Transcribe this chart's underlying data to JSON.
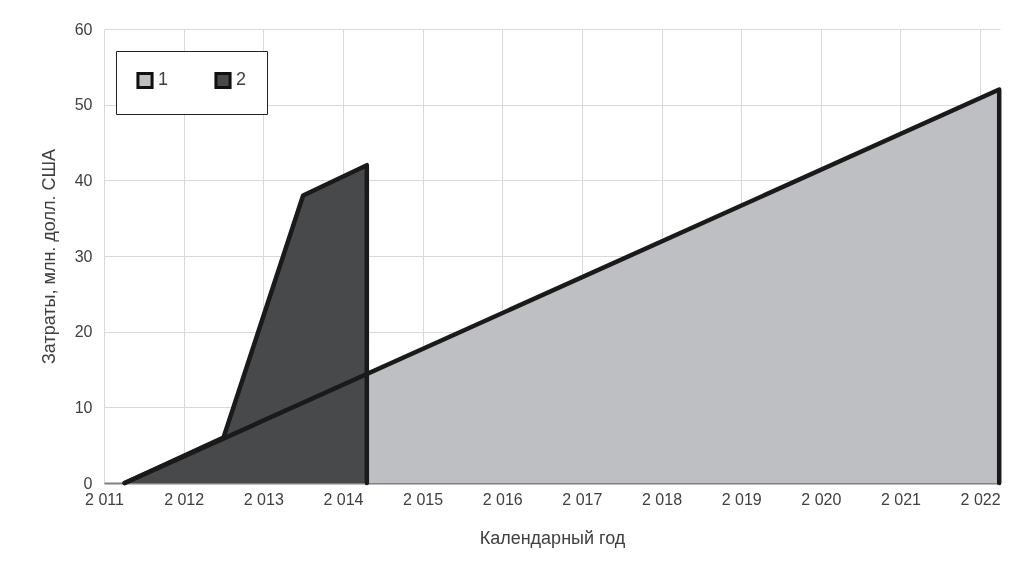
{
  "chart_data": {
    "type": "area",
    "xlabel": "Календарный год",
    "ylabel": "Затраты, млн. долл. США",
    "xlim": [
      2011,
      2022.25
    ],
    "ylim": [
      0,
      60
    ],
    "xticks": [
      {
        "value": 2011,
        "label": "2 011"
      },
      {
        "value": 2012,
        "label": "2 012"
      },
      {
        "value": 2013,
        "label": "2 013"
      },
      {
        "value": 2014,
        "label": "2 014"
      },
      {
        "value": 2015,
        "label": "2 015"
      },
      {
        "value": 2016,
        "label": "2 016"
      },
      {
        "value": 2017,
        "label": "2 017"
      },
      {
        "value": 2018,
        "label": "2 018"
      },
      {
        "value": 2019,
        "label": "2 019"
      },
      {
        "value": 2020,
        "label": "2 020"
      },
      {
        "value": 2021,
        "label": "2 021"
      },
      {
        "value": 2022,
        "label": "2 022"
      }
    ],
    "yticks": [
      0,
      10,
      20,
      30,
      40,
      50,
      60
    ],
    "grid": true,
    "legend": "top left",
    "series": [
      {
        "name": "1",
        "color": "#bebfc2",
        "x": [
          2011.26,
          2022.24,
          2022.24
        ],
        "values": [
          0,
          52,
          0
        ]
      },
      {
        "name": "2",
        "color": "#48494b",
        "x": [
          2011.26,
          2012.5,
          2013.5,
          2014.3,
          2014.3
        ],
        "values": [
          0,
          6,
          38,
          42,
          0
        ]
      }
    ]
  }
}
